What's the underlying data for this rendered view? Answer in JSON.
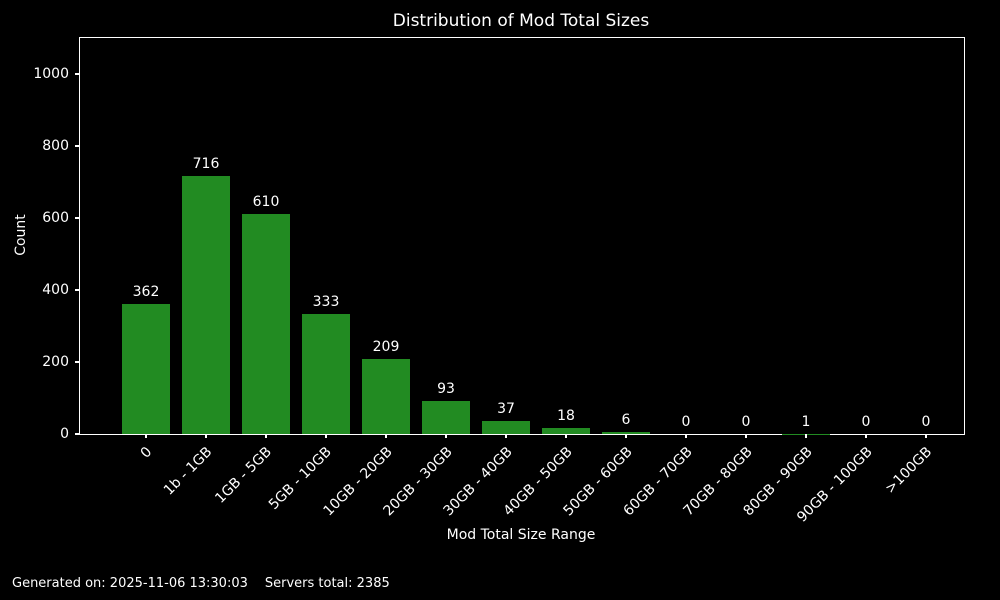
{
  "figure": {
    "background": "#000000",
    "text_color": "#ffffff",
    "spine_color": "#ffffff"
  },
  "chart_data": {
    "type": "bar",
    "title": "Distribution of Mod Total Sizes",
    "xlabel": "Mod Total Size Range",
    "ylabel": "Count",
    "categories": [
      "0",
      "1b - 1GB",
      "1GB - 5GB",
      "5GB - 10GB",
      "10GB - 20GB",
      "20GB - 30GB",
      "30GB - 40GB",
      "40GB - 50GB",
      "50GB - 60GB",
      "60GB - 70GB",
      "70GB - 80GB",
      "80GB - 90GB",
      "90GB - 100GB",
      ">100GB"
    ],
    "values": [
      362,
      716,
      610,
      333,
      209,
      93,
      37,
      18,
      6,
      0,
      0,
      1,
      0,
      0
    ],
    "bar_color": "#228B22",
    "bar_value_labels_shown": true,
    "ylim": [
      0,
      1100
    ],
    "yticks": [
      0,
      200,
      400,
      600,
      800,
      1000
    ],
    "grid": false,
    "legend_position": "none"
  },
  "footer": {
    "generated": "Generated on: 2025-11-06 13:30:03",
    "servers_total": "Servers total: 2385"
  }
}
